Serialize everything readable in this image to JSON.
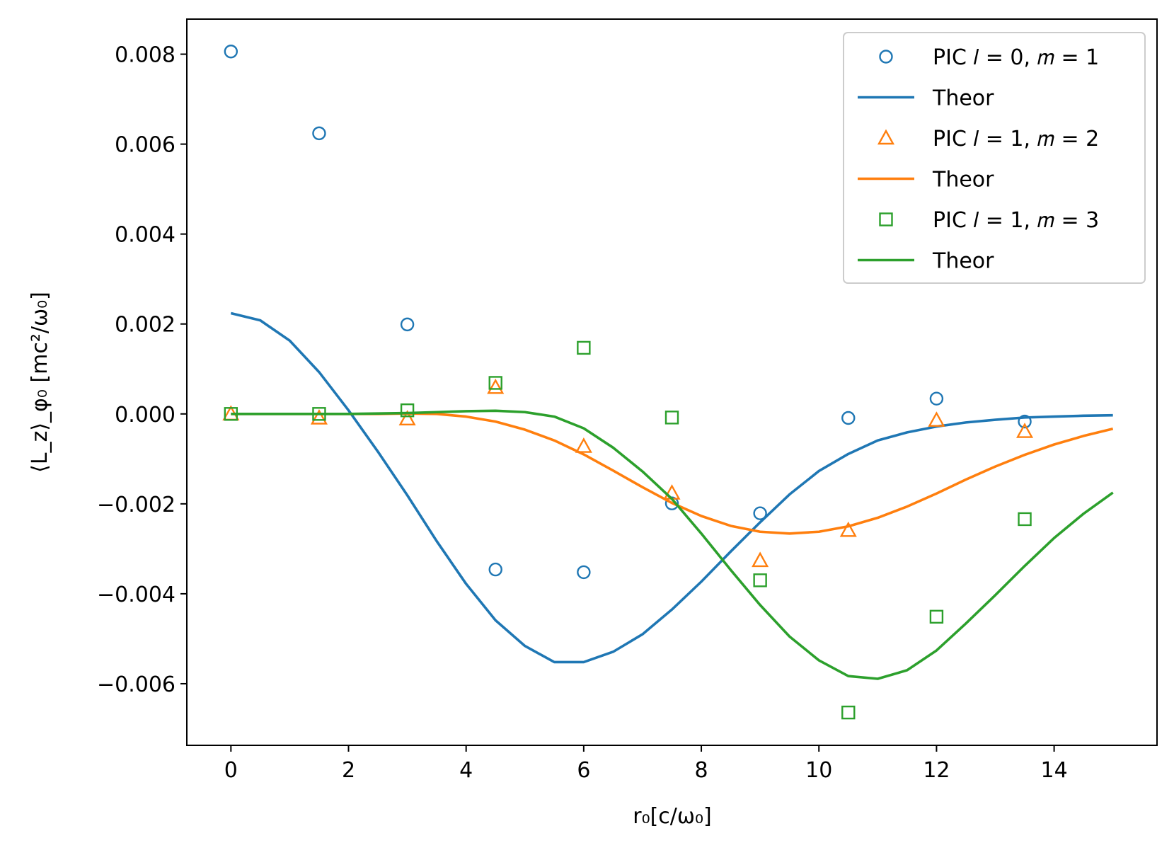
{
  "chart_data": {
    "type": "scatter",
    "title": "",
    "xlabel": "r₀[c/ω₀]",
    "ylabel": "⟨L_z⟩_φ₀ [mc²/ω₀]",
    "xlim": [
      -0.75,
      15.75
    ],
    "ylim": [
      -0.00737,
      0.00878
    ],
    "xticks": [
      0,
      2,
      4,
      6,
      8,
      10,
      12,
      14
    ],
    "yticks": [
      0.008,
      0.006,
      0.004,
      0.002,
      0.0,
      -0.002,
      -0.004,
      -0.006
    ],
    "xtick_labels": [
      "0",
      "2",
      "4",
      "6",
      "8",
      "10",
      "12",
      "14"
    ],
    "ytick_labels": [
      "0.008",
      "0.006",
      "0.004",
      "0.002",
      "0.000",
      "−0.002",
      "−0.004",
      "−0.006"
    ],
    "grid": false,
    "legend_position": "top-right",
    "series": [
      {
        "name": "PIC l = 0, m = 1",
        "legend_label": "PIC 𝑙 = 0, 𝑚 = 1",
        "kind": "scatter",
        "marker": "circle",
        "color": "#1f77b4",
        "x": [
          0,
          1.5,
          3,
          4.5,
          6,
          7.5,
          9,
          10.5,
          12,
          13.5
        ],
        "y": [
          0.00806,
          0.00624,
          0.00199,
          -0.00346,
          -0.00352,
          -0.00199,
          -0.00221,
          -9e-05,
          0.00034,
          -0.00017
        ]
      },
      {
        "name": "Theor (l = 0, m = 1)",
        "legend_label": "Theor",
        "kind": "line",
        "color": "#1f77b4",
        "x": [
          0,
          0.5,
          1,
          1.5,
          2,
          2.5,
          3,
          3.5,
          4,
          4.5,
          5,
          5.5,
          6,
          6.5,
          7,
          7.5,
          8,
          8.5,
          9,
          9.5,
          10,
          10.5,
          11,
          11.5,
          12,
          12.5,
          13,
          13.5,
          14,
          14.5,
          15
        ],
        "y": [
          0.00224,
          0.00208,
          0.00163,
          0.00093,
          8e-05,
          -0.00084,
          -0.00181,
          -0.00283,
          -0.00378,
          -0.00459,
          -0.00516,
          -0.00552,
          -0.00552,
          -0.00529,
          -0.0049,
          -0.00435,
          -0.00373,
          -0.00306,
          -0.00241,
          -0.00179,
          -0.00127,
          -0.00089,
          -0.00059,
          -0.00041,
          -0.00028,
          -0.00019,
          -0.00013,
          -8e-05,
          -6e-05,
          -4e-05,
          -3e-05
        ]
      },
      {
        "name": "PIC l = 1, m = 2",
        "legend_label": "PIC 𝑙 = 1, 𝑚 = 2",
        "kind": "scatter",
        "marker": "triangle",
        "color": "#ff7f0e",
        "x": [
          0,
          1.5,
          3,
          4.5,
          6,
          7.5,
          9,
          10.5,
          12,
          13.5
        ],
        "y": [
          0.0,
          -9e-05,
          -0.00011,
          0.00059,
          -0.00072,
          -0.00176,
          -0.00326,
          -0.00259,
          -0.00014,
          -0.00039
        ]
      },
      {
        "name": "Theor (l = 1, m = 2)",
        "legend_label": "Theor",
        "kind": "line",
        "color": "#ff7f0e",
        "x": [
          0,
          0.5,
          1,
          1.5,
          2,
          2.5,
          3,
          3.5,
          4,
          4.5,
          5,
          5.5,
          6,
          6.5,
          7,
          7.5,
          8,
          8.5,
          9,
          9.5,
          10,
          10.5,
          11,
          11.5,
          12,
          12.5,
          13,
          13.5,
          14,
          14.5,
          15
        ],
        "y": [
          0.0,
          0.0,
          0.0,
          0.0,
          0.0,
          0.0,
          1e-05,
          0.0,
          -6e-05,
          -0.00017,
          -0.00035,
          -0.00059,
          -0.0009,
          -0.00126,
          -0.00163,
          -0.00198,
          -0.00227,
          -0.00249,
          -0.00262,
          -0.00266,
          -0.00262,
          -0.0025,
          -0.00231,
          -0.00206,
          -0.00177,
          -0.00146,
          -0.00117,
          -0.00091,
          -0.00068,
          -0.00049,
          -0.00033
        ]
      },
      {
        "name": "PIC l = 1, m = 3",
        "legend_label": "PIC 𝑙 = 1, 𝑚 = 3",
        "kind": "scatter",
        "marker": "square",
        "color": "#2ca02c",
        "x": [
          0,
          1.5,
          3,
          4.5,
          6,
          7.5,
          9,
          10.5,
          12,
          13.5
        ],
        "y": [
          0.0,
          0.0,
          8e-05,
          0.00069,
          0.00147,
          -8e-05,
          -0.0037,
          -0.00664,
          -0.00451,
          -0.00234
        ]
      },
      {
        "name": "Theor (l = 1, m = 3)",
        "legend_label": "Theor",
        "kind": "line",
        "color": "#2ca02c",
        "x": [
          0,
          0.5,
          1,
          1.5,
          2,
          2.5,
          3,
          3.5,
          4,
          4.5,
          5,
          5.5,
          6,
          6.5,
          7,
          7.5,
          8,
          8.5,
          9,
          9.5,
          10,
          10.5,
          11,
          11.5,
          12,
          12.5,
          13,
          13.5,
          14,
          14.5,
          15
        ],
        "y": [
          0.0,
          0.0,
          0.0,
          0.0,
          0.0,
          1e-05,
          2e-05,
          4e-05,
          6e-05,
          7e-05,
          4e-05,
          -6e-05,
          -0.00032,
          -0.00075,
          -0.00128,
          -0.00189,
          -0.00266,
          -0.00347,
          -0.00425,
          -0.00495,
          -0.00548,
          -0.00583,
          -0.00589,
          -0.0057,
          -0.00526,
          -0.00466,
          -0.00403,
          -0.00338,
          -0.00276,
          -0.00222,
          -0.00175
        ]
      }
    ]
  }
}
